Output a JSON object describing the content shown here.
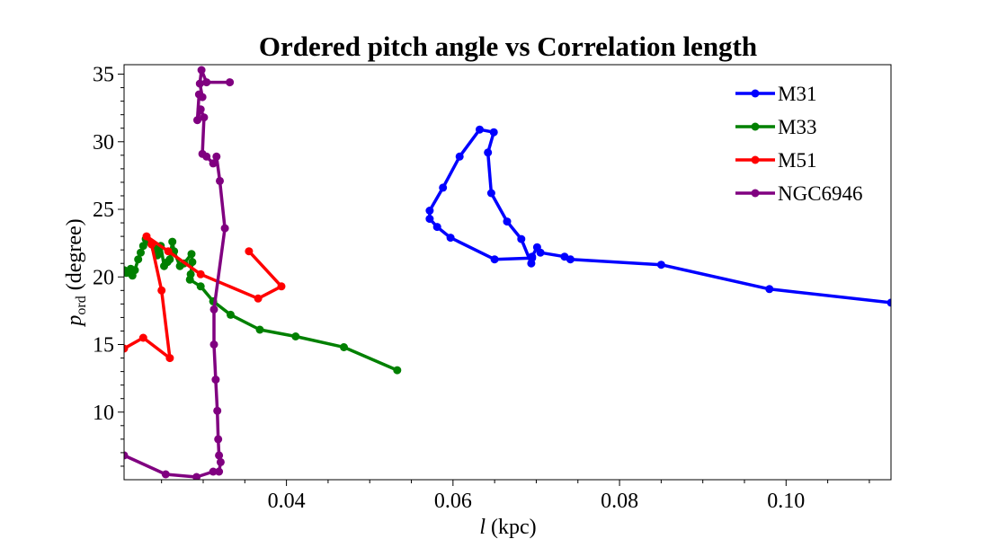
{
  "chart_data": {
    "type": "line",
    "title": "Ordered pitch angle vs Correlation length",
    "xlabel": {
      "italic": "l",
      "rest": " (kpc)"
    },
    "ylabel": {
      "italic": "p",
      "sub": "ord",
      "rest": "  (degree)"
    },
    "xlim": [
      0.0205,
      0.1126
    ],
    "ylim": [
      5.0,
      35.7
    ],
    "xticks": [
      0.04,
      0.06,
      0.08,
      0.1
    ],
    "xtick_labels": [
      "0.04",
      "0.06",
      "0.08",
      "0.10"
    ],
    "yticks": [
      10,
      15,
      20,
      25,
      30,
      35
    ],
    "ytick_labels": [
      "10",
      "15",
      "20",
      "25",
      "30",
      "35"
    ],
    "grid": false,
    "legend_position": "top-right",
    "series": [
      {
        "name": "M31",
        "color": "#0000ff",
        "x": [
          0.1126,
          0.098,
          0.085,
          0.0741,
          0.0734,
          0.0705,
          0.0701,
          0.0695,
          0.0694,
          0.0682,
          0.0665,
          0.0646,
          0.0642,
          0.0649,
          0.0632,
          0.0608,
          0.0588,
          0.0572,
          0.0572,
          0.0581,
          0.0597,
          0.065,
          0.0695
        ],
        "y": [
          18.1,
          19.1,
          20.9,
          21.3,
          21.5,
          21.8,
          22.2,
          21.5,
          21.0,
          22.8,
          24.1,
          26.2,
          29.2,
          30.7,
          30.9,
          28.9,
          26.6,
          24.9,
          24.3,
          23.7,
          22.9,
          21.3,
          21.4
        ]
      },
      {
        "name": "M33",
        "color": "#008000",
        "x": [
          0.0533,
          0.0469,
          0.0411,
          0.0368,
          0.0333,
          0.0312,
          0.0297,
          0.0284,
          0.0285,
          0.0287,
          0.0286,
          0.0277,
          0.0272,
          0.0265,
          0.0263,
          0.026,
          0.0257,
          0.0253,
          0.0249,
          0.0245,
          0.0242,
          0.0237,
          0.0233,
          0.0231,
          0.0228,
          0.0225,
          0.0222,
          0.0218,
          0.0215,
          0.0213,
          0.0208,
          0.0205
        ],
        "y": [
          13.1,
          14.8,
          15.6,
          16.1,
          17.2,
          18.2,
          19.3,
          19.8,
          20.2,
          21.1,
          21.7,
          21.0,
          20.8,
          21.9,
          22.6,
          21.3,
          21.1,
          20.8,
          22.3,
          21.6,
          22.1,
          22.5,
          22.7,
          22.8,
          22.3,
          21.8,
          21.3,
          20.5,
          20.1,
          20.6,
          20.3,
          20.5
        ]
      },
      {
        "name": "M51",
        "color": "#ff0000",
        "x": [
          0.0355,
          0.0394,
          0.0366,
          0.0297,
          0.0258,
          0.0232,
          0.0238,
          0.025,
          0.026,
          0.0228,
          0.0205
        ],
        "y": [
          21.9,
          19.3,
          18.4,
          20.2,
          21.9,
          23.0,
          22.4,
          19.0,
          14.0,
          15.5,
          14.7
        ]
      },
      {
        "name": "NGC6946",
        "color": "#800080",
        "x": [
          0.0332,
          0.0304,
          0.0298,
          0.0296,
          0.0299,
          0.0295,
          0.0293,
          0.0297,
          0.0301,
          0.0299,
          0.0304,
          0.0312,
          0.0316,
          0.032,
          0.0326,
          0.0313,
          0.0313,
          0.0315,
          0.0317,
          0.0318,
          0.0319,
          0.0321,
          0.0319,
          0.0312,
          0.0292,
          0.0255,
          0.0205
        ],
        "y": [
          34.4,
          34.4,
          35.3,
          34.3,
          33.3,
          33.5,
          31.6,
          32.4,
          31.8,
          29.1,
          28.9,
          28.4,
          28.9,
          27.1,
          23.6,
          17.6,
          15.0,
          12.4,
          10.1,
          8.0,
          6.8,
          6.3,
          5.6,
          5.6,
          5.2,
          5.4,
          6.8
        ]
      }
    ]
  }
}
